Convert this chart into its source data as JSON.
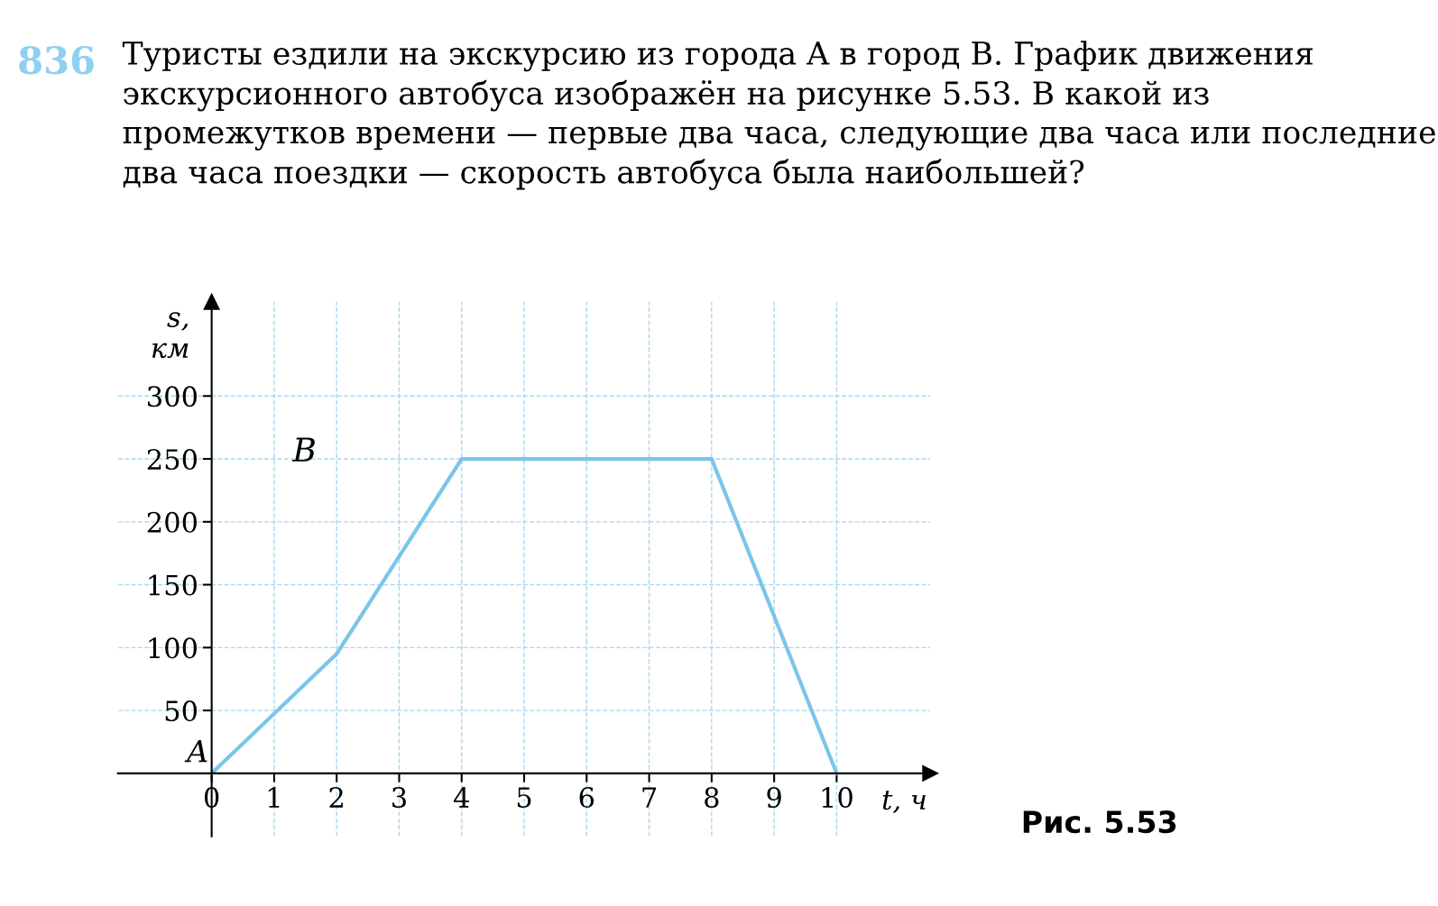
{
  "chart_data": {
    "type": "line",
    "title": "Туристы ездили на экскурсию из города A в город B. График движения экскурсионного автобуса изображён на рисунке 5.53. В какой из промежутков времени — первые два часа, следующие два часа или последние два часа поездки — скорость автобуса была наибольшей?",
    "subtitle": "836",
    "xlabel": "t, ч",
    "ylabel": "s, км",
    "x": [
      0,
      2,
      4,
      8,
      10
    ],
    "series": [
      {
        "color": "#7cc4ea",
        "values": [
          0,
          95,
          250,
          250,
          0
        ]
      }
    ],
    "xlim": [
      -1.5,
      11.5
    ],
    "ylim": [
      -50,
      375
    ],
    "xticks": [
      0,
      1,
      2,
      3,
      4,
      5,
      6,
      7,
      8,
      9,
      10
    ],
    "yticks": [
      50,
      100,
      150,
      200,
      250,
      300
    ],
    "grid": true,
    "legend": false,
    "marker": "none",
    "line_style": "solid",
    "annotations": [
      {
        "text": "A",
        "x": 0,
        "y": 0
      },
      "B",
      "Рис. 5.53"
    ]
  }
}
